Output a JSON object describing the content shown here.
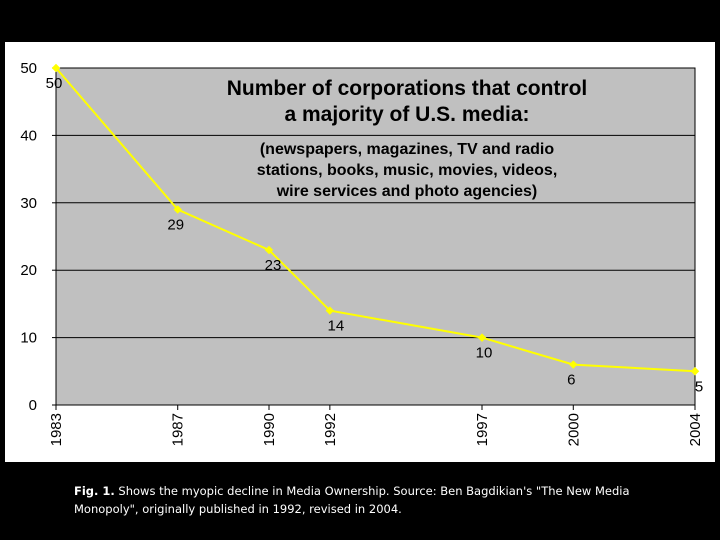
{
  "chart_data": {
    "type": "line",
    "title": "Number of corporations that control a majority of U.S. media:",
    "title_lines": [
      "Number of corporations that control",
      "a majority of U.S. media:"
    ],
    "subtitle_lines": [
      "(newspapers, magazines, TV and radio",
      "stations, books, music, movies, videos,",
      "wire services and photo agencies)"
    ],
    "x": [
      1983,
      1987,
      1990,
      1992,
      1997,
      2000,
      2004
    ],
    "x_labels": [
      "1983",
      "1987",
      "1990",
      "1992",
      "1997",
      "2000",
      "2004"
    ],
    "values": [
      50,
      29,
      23,
      14,
      10,
      6,
      5
    ],
    "data_labels": [
      "50",
      "29",
      "23",
      "14",
      "10",
      "6",
      "5"
    ],
    "ylim": [
      0,
      50
    ],
    "yticks": [
      0,
      10,
      20,
      30,
      40,
      50
    ],
    "ytick_labels": [
      "0",
      "10",
      "20",
      "30",
      "40",
      "50"
    ],
    "grid": true,
    "xlabel": "",
    "ylabel": "",
    "colors": {
      "line": "#ffff00",
      "plot_bg": "#c0c0c0",
      "grid": "#000000"
    }
  },
  "caption": {
    "fig_label": "Fig. 1.",
    "text": " Shows the myopic decline in Media Ownership. Source: Ben Bagdikian's \"The New Media Monopoly\", originally published in 1992, revised in 2004."
  }
}
